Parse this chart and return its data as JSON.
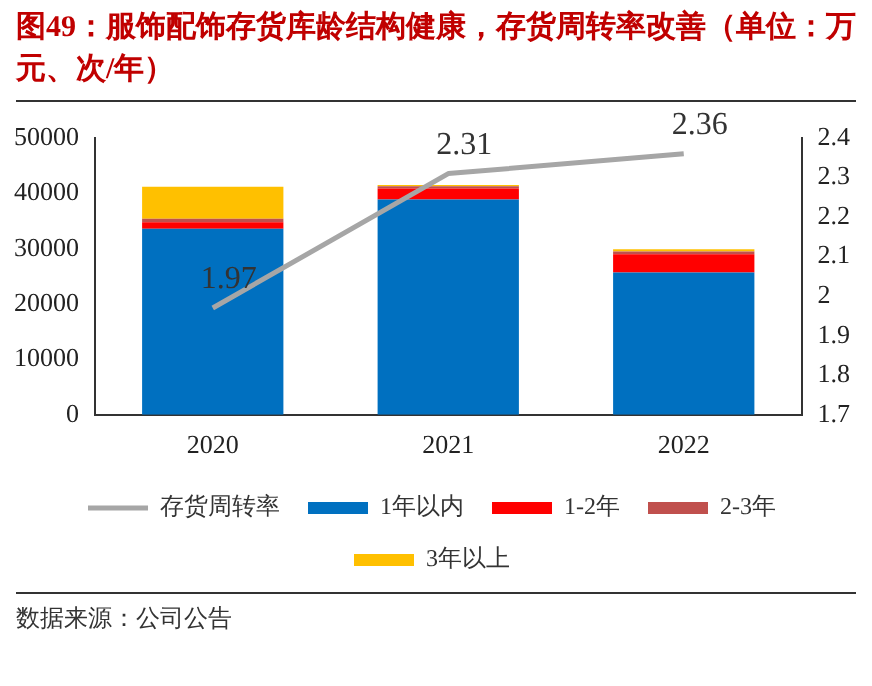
{
  "chart_data": {
    "type": "bar",
    "title": "图49：服饰配饰存货库龄结构健康，存货周转率改善（单位：万元、次/年）",
    "categories": [
      "2020",
      "2021",
      "2022"
    ],
    "stacked": true,
    "series": [
      {
        "name": "1年以内",
        "color": "#0070c0",
        "values": [
          33600,
          38900,
          25700
        ]
      },
      {
        "name": "1-2年",
        "color": "#ff0000",
        "values": [
          1200,
          2000,
          3300
        ]
      },
      {
        "name": "2-3年",
        "color": "#c0504d",
        "values": [
          600,
          400,
          500
        ]
      },
      {
        "name": "3年以上",
        "color": "#ffc000",
        "values": [
          5800,
          200,
          400
        ]
      },
      {
        "name": "存货周转率",
        "type": "line",
        "axis": "y2",
        "color": "#a6a6a6",
        "values": [
          1.97,
          2.31,
          2.36
        ],
        "value_labels": [
          "1.97",
          "2.31",
          "2.36"
        ]
      }
    ],
    "ylim": [
      0,
      50000
    ],
    "yticks": [
      0,
      10000,
      20000,
      30000,
      40000,
      50000
    ],
    "y2lim": [
      1.7,
      2.4
    ],
    "y2ticks": [
      1.7,
      1.8,
      1.9,
      2,
      2.1,
      2.2,
      2.3,
      2.4
    ],
    "grid": false,
    "legend": "bottom",
    "marker": "none",
    "line_style": "solid",
    "annotations": [
      "数据来源：公司公告"
    ]
  }
}
